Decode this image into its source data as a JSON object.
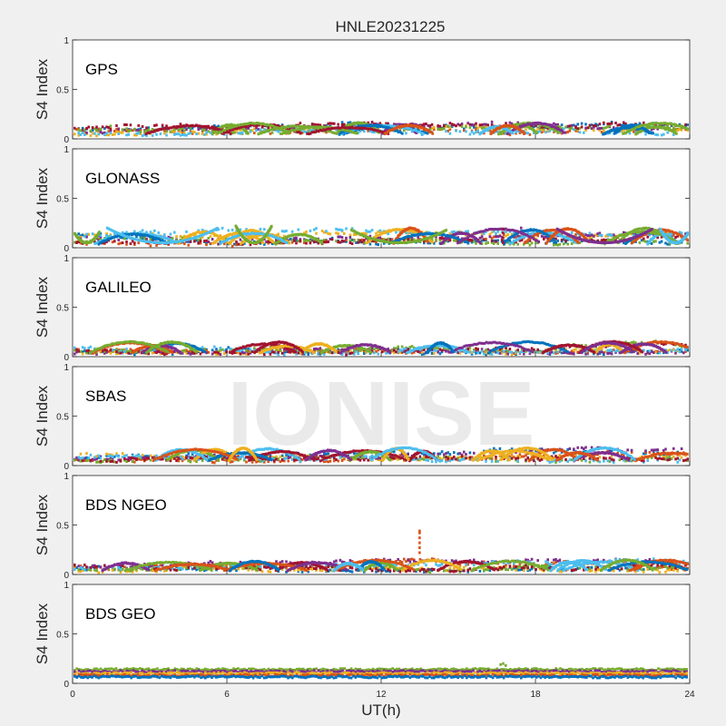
{
  "chart_data": {
    "type": "scatter",
    "title": "HNLE20231225",
    "xlabel": "UT(h)",
    "xlim": [
      0,
      24
    ],
    "xticks": [
      "0",
      "6",
      "12",
      "18",
      "24"
    ],
    "ylim": [
      0,
      1
    ],
    "yticks": [
      "0",
      "0.5",
      "1"
    ],
    "grid": false,
    "watermark": "IONISE",
    "series_colors": [
      "#0072BD",
      "#D95319",
      "#EDB120",
      "#7E2F8E",
      "#77AC30",
      "#4DBEEE",
      "#A2142F"
    ],
    "panels": [
      {
        "name": "GPS",
        "ylabel": "S4 Index",
        "typical_range": [
          0.04,
          0.16
        ],
        "max_value": 0.2,
        "spikes": []
      },
      {
        "name": "GLONASS",
        "ylabel": "S4 Index",
        "typical_range": [
          0.03,
          0.2
        ],
        "max_value": 0.23,
        "arcs": [
          {
            "x0": 0.0,
            "x1": 1.0,
            "peak": 0.16,
            "color": "#77AC30"
          },
          {
            "x0": 1.3,
            "x1": 5.6,
            "peak": 0.2,
            "color": "#4DBEEE"
          },
          {
            "x0": 6.3,
            "x1": 7.7,
            "peak": 0.22,
            "color": "#77AC30"
          },
          {
            "x0": 10.8,
            "x1": 14.5,
            "peak": 0.18,
            "color": "#77AC30"
          },
          {
            "x0": 18.8,
            "x1": 22.5,
            "peak": 0.19,
            "color": "#7E2F8E"
          },
          {
            "x0": 22.8,
            "x1": 24.0,
            "peak": 0.19,
            "color": "#4DBEEE"
          }
        ],
        "spikes": [
          {
            "x": 16.7,
            "values": [
              0.05,
              0.1,
              0.15,
              0.19
            ],
            "color": "#A2142F"
          },
          {
            "x": 17.4,
            "values": [
              0.15,
              0.2
            ],
            "color": "#7E2F8E"
          }
        ]
      },
      {
        "name": "GALILEO",
        "ylabel": "S4 Index",
        "typical_range": [
          0.03,
          0.15
        ],
        "max_value": 0.17,
        "spikes": []
      },
      {
        "name": "SBAS",
        "ylabel": "S4 Index",
        "typical_range": [
          0.04,
          0.18
        ],
        "max_value": 0.22,
        "spikes": []
      },
      {
        "name": "BDS NGEO",
        "ylabel": "S4 Index",
        "typical_range": [
          0.03,
          0.15
        ],
        "max_value": 0.44,
        "spikes": [
          {
            "x": 13.45,
            "values": [
              0.22,
              0.27,
              0.32,
              0.37,
              0.42,
              0.44
            ],
            "color": "#D95319"
          }
        ]
      },
      {
        "name": "BDS GEO",
        "ylabel": "S4 Index",
        "typical_range": [
          0.05,
          0.15
        ],
        "max_value": 0.2,
        "bands": [
          {
            "level": 0.14,
            "color": "#77AC30"
          },
          {
            "level": 0.12,
            "color": "#7E2F8E"
          },
          {
            "level": 0.1,
            "color": "#EDB120"
          },
          {
            "level": 0.08,
            "color": "#D95319"
          },
          {
            "level": 0.065,
            "color": "#0072BD"
          }
        ],
        "spikes": []
      }
    ]
  }
}
